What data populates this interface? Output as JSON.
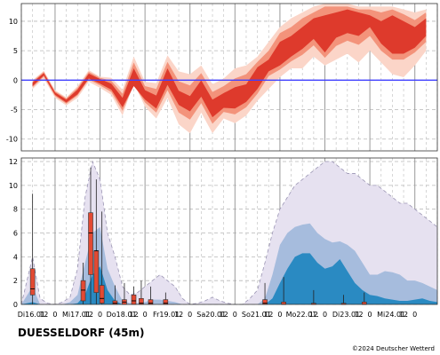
{
  "station_label": "DUESSELDORF (45m)",
  "copyright": "©2024 Deutscher Wetterd",
  "colors": {
    "temp_outer": "#fbd5c8",
    "temp_mid": "#f3937b",
    "temp_inner": "#de3a2c",
    "zero_line": "#4040ff",
    "precip_outer": "#e6e1f0",
    "precip_mid": "#a6bcdd",
    "precip_inner": "#2a8ac2",
    "box_fill": "#e34a33"
  },
  "chart_data": [
    {
      "type": "area",
      "ylim": [
        -12,
        13
      ],
      "yticks": [
        -10,
        -5,
        0,
        5,
        10
      ],
      "grid": true,
      "reference_line": 0,
      "x_unit": "hours since Di16.01. 00 UTC",
      "xlim": [
        -12,
        210
      ],
      "x": [
        -6,
        0,
        6,
        12,
        18,
        24,
        30,
        36,
        42,
        48,
        54,
        60,
        66,
        72,
        78,
        84,
        90,
        96,
        102,
        108,
        114,
        120,
        126,
        132,
        138,
        144,
        150,
        156,
        162,
        168,
        174,
        180,
        186,
        192,
        198,
        204
      ],
      "series": [
        {
          "band": "outer_low",
          "values": [
            -1.5,
            0.3,
            -3.0,
            -4.3,
            -3.0,
            -0.3,
            -1.3,
            -2.5,
            -6.0,
            -0.5,
            -4.5,
            -6.5,
            -3.0,
            -7.5,
            -9.0,
            -5.5,
            -9.0,
            -6.5,
            -7.3,
            -6.0,
            -3.5,
            -1.5,
            0.5,
            2.0,
            2.0,
            4.0,
            2.5,
            3.5,
            4.5,
            3.0,
            5.0,
            3.0,
            1.0,
            0.5,
            2.5,
            5.0
          ]
        },
        {
          "band": "mid_low",
          "values": [
            -1.2,
            0.6,
            -2.7,
            -4.0,
            -2.6,
            0.1,
            -0.9,
            -2.0,
            -5.2,
            -0.8,
            -3.8,
            -5.5,
            -1.7,
            -5.5,
            -6.7,
            -3.9,
            -7.4,
            -5.4,
            -5.8,
            -4.6,
            -2.3,
            0.7,
            1.8,
            3.2,
            4.3,
            5.9,
            3.8,
            5.8,
            6.7,
            6.0,
            7.5,
            5.0,
            3.5,
            3.5,
            4.7,
            6.5
          ]
        },
        {
          "band": "inner_low",
          "values": [
            -1.0,
            0.8,
            -2.5,
            -3.8,
            -2.4,
            0.3,
            -0.6,
            -1.6,
            -4.6,
            -1.0,
            -3.3,
            -4.8,
            -0.8,
            -4.2,
            -5.3,
            -2.8,
            -6.3,
            -4.7,
            -4.8,
            -3.7,
            -1.5,
            1.5,
            2.5,
            4.0,
            5.3,
            7.0,
            4.7,
            7.2,
            8.0,
            7.5,
            9.0,
            6.2,
            4.5,
            4.5,
            5.5,
            7.5
          ]
        },
        {
          "band": "inner_high",
          "values": [
            -0.4,
            1.2,
            -2.1,
            -3.3,
            -1.6,
            1.1,
            0.2,
            -0.6,
            -3.0,
            2.0,
            -1.7,
            -2.6,
            2.0,
            -1.8,
            -2.7,
            0.0,
            -3.3,
            -2.2,
            -1.2,
            -0.7,
            2.2,
            3.5,
            6.5,
            7.5,
            9.0,
            10.5,
            11.0,
            11.5,
            12.0,
            11.5,
            11.0,
            10.0,
            11.0,
            10.0,
            9.0,
            10.5
          ]
        },
        {
          "band": "mid_high",
          "values": [
            -0.2,
            1.4,
            -1.9,
            -3.1,
            -1.3,
            1.4,
            0.4,
            -0.1,
            -2.3,
            3.0,
            -1.0,
            -1.5,
            3.1,
            -0.2,
            -0.9,
            1.2,
            -2.0,
            -1.0,
            0.3,
            1.0,
            3.1,
            5.0,
            8.0,
            9.0,
            10.5,
            11.5,
            12.5,
            12.5,
            12.5,
            12.0,
            12.0,
            11.5,
            12.0,
            11.2,
            10.2,
            11.5
          ]
        },
        {
          "band": "outer_high",
          "values": [
            0.0,
            1.6,
            -1.7,
            -2.9,
            -1.0,
            1.7,
            0.6,
            0.4,
            -1.6,
            4.0,
            -0.3,
            -0.5,
            4.2,
            1.5,
            1.0,
            2.5,
            -0.7,
            0.3,
            2.0,
            2.5,
            4.0,
            6.5,
            9.0,
            10.5,
            11.5,
            12.5,
            13.0,
            13.0,
            13.0,
            12.5,
            12.5,
            12.5,
            12.5,
            12.0,
            11.5,
            12.0
          ]
        }
      ]
    },
    {
      "type": "area",
      "ylim": [
        0,
        12.3
      ],
      "yticks": [
        0,
        2,
        4,
        6,
        8,
        10,
        12
      ],
      "grid": true,
      "x_unit": "hours since Di16.01. 00 UTC",
      "xlim": [
        -12,
        210
      ],
      "xtick_labels": [
        {
          "x": -6,
          "label": "Di16.01."
        },
        {
          "x": 0,
          "label": "12"
        },
        {
          "x": 6,
          "label": "0"
        },
        {
          "x": 18,
          "label": "Mi17.01."
        },
        {
          "x": 24,
          "label": "12"
        },
        {
          "x": 30,
          "label": "0"
        },
        {
          "x": 42,
          "label": "Do18.01."
        },
        {
          "x": 48,
          "label": "12"
        },
        {
          "x": 54,
          "label": "0"
        },
        {
          "x": 66,
          "label": "Fr19.01."
        },
        {
          "x": 72,
          "label": "12"
        },
        {
          "x": 78,
          "label": "0"
        },
        {
          "x": 90,
          "label": "Sa20.01."
        },
        {
          "x": 96,
          "label": "12"
        },
        {
          "x": 102,
          "label": "0"
        },
        {
          "x": 114,
          "label": "So21.01."
        },
        {
          "x": 120,
          "label": "12"
        },
        {
          "x": 126,
          "label": "0"
        },
        {
          "x": 138,
          "label": "Mo22.01."
        },
        {
          "x": 144,
          "label": "12"
        },
        {
          "x": 150,
          "label": "0"
        },
        {
          "x": 162,
          "label": "Di23.01."
        },
        {
          "x": 168,
          "label": "12"
        },
        {
          "x": 174,
          "label": "0"
        },
        {
          "x": 186,
          "label": "Mi24.01."
        },
        {
          "x": 192,
          "label": "12"
        },
        {
          "x": 198,
          "label": "0"
        }
      ],
      "x": [
        -12,
        -6,
        -2,
        2,
        6,
        10,
        14,
        18,
        22,
        26,
        30,
        34,
        38,
        42,
        46,
        50,
        54,
        58,
        62,
        66,
        70,
        74,
        78,
        82,
        86,
        90,
        94,
        98,
        102,
        106,
        110,
        114,
        118,
        122,
        126,
        130,
        134,
        138,
        142,
        146,
        150,
        154,
        158,
        162,
        166,
        170,
        174,
        178,
        182,
        186,
        190,
        194,
        198,
        202,
        206,
        210
      ],
      "series": [
        {
          "band": "outer",
          "values": [
            0,
            4.0,
            0.5,
            0.1,
            0,
            0.2,
            0.6,
            3.0,
            9.0,
            12.0,
            10.5,
            6.0,
            4.0,
            1.5,
            0.8,
            1.0,
            1.5,
            2.0,
            2.5,
            2.0,
            1.5,
            0.5,
            0,
            0.1,
            0.3,
            0.6,
            0.3,
            0.1,
            0,
            0,
            0.5,
            1.2,
            3.5,
            6.0,
            8.0,
            9.0,
            10.0,
            10.5,
            11.0,
            11.5,
            12.0,
            12.0,
            11.5,
            11.0,
            11.0,
            10.5,
            10.0,
            10.0,
            9.5,
            9.0,
            8.5,
            8.5,
            8.0,
            7.5,
            7.0,
            6.5
          ]
        },
        {
          "band": "mid",
          "values": [
            0,
            1.5,
            0,
            0,
            0,
            0,
            0.2,
            0.8,
            3.5,
            6.0,
            6.5,
            3.0,
            1.5,
            0.3,
            0.1,
            0.1,
            0.2,
            0.4,
            0.4,
            0.3,
            0.2,
            0,
            0,
            0,
            0,
            0,
            0,
            0,
            0,
            0,
            0,
            0,
            0.5,
            2.5,
            5.0,
            6.0,
            6.5,
            6.7,
            6.8,
            6.0,
            5.5,
            5.2,
            5.3,
            5.0,
            4.5,
            3.5,
            2.5,
            2.5,
            2.8,
            2.7,
            2.5,
            2.0,
            2.0,
            1.8,
            1.5,
            1.2
          ]
        },
        {
          "band": "inner",
          "values": [
            0,
            0.2,
            0,
            0,
            0,
            0,
            0,
            0.1,
            0.8,
            2.5,
            3.2,
            1.2,
            0.3,
            0,
            0,
            0,
            0,
            0,
            0,
            0,
            0,
            0,
            0,
            0,
            0,
            0,
            0,
            0,
            0,
            0,
            0,
            0,
            0,
            0.5,
            1.8,
            3.0,
            4.0,
            4.3,
            4.3,
            3.5,
            3.0,
            3.2,
            3.8,
            2.8,
            1.8,
            1.2,
            0.8,
            0.7,
            0.5,
            0.4,
            0.3,
            0.3,
            0.4,
            0.5,
            0.3,
            0.2
          ]
        }
      ],
      "boxplots": [
        {
          "x": -6,
          "min": 0,
          "q1": 0.8,
          "median": 1.3,
          "q3": 3.0,
          "max": 9.3
        },
        {
          "x": 21,
          "min": 0,
          "q1": 0.3,
          "median": 1.2,
          "q3": 2.0,
          "max": 3.5
        },
        {
          "x": 25,
          "min": 0,
          "q1": 2.5,
          "median": 6.0,
          "q3": 7.7,
          "max": 11.5
        },
        {
          "x": 28,
          "min": 0,
          "q1": 1.0,
          "median": 4.5,
          "q3": 4.5,
          "max": 10.5
        },
        {
          "x": 31,
          "min": 0,
          "q1": 0.1,
          "median": 0.5,
          "q3": 1.6,
          "max": 7.8
        },
        {
          "x": 38,
          "min": 0,
          "q1": 0,
          "median": 0.1,
          "q3": 0.3,
          "max": 1.6
        },
        {
          "x": 43,
          "min": 0,
          "q1": 0,
          "median": 0.2,
          "q3": 0.4,
          "max": 1.8
        },
        {
          "x": 48,
          "min": 0,
          "q1": 0,
          "median": 0.3,
          "q3": 0.8,
          "max": 1.5
        },
        {
          "x": 52,
          "min": 0,
          "q1": 0,
          "median": 0.1,
          "q3": 0.5,
          "max": 2.0
        },
        {
          "x": 57,
          "min": 0,
          "q1": 0,
          "median": 0.1,
          "q3": 0.4,
          "max": 1.5
        },
        {
          "x": 65,
          "min": 0,
          "q1": 0,
          "median": 0.1,
          "q3": 0.4,
          "max": 1.0
        },
        {
          "x": 118,
          "min": 0,
          "q1": 0,
          "median": 0.1,
          "q3": 0.4,
          "max": 1.8
        },
        {
          "x": 128,
          "min": 0,
          "q1": 0,
          "median": 0,
          "q3": 0.2,
          "max": 2.3
        },
        {
          "x": 144,
          "min": 0,
          "q1": 0,
          "median": 0,
          "q3": 0.1,
          "max": 1.2
        },
        {
          "x": 160,
          "min": 0,
          "q1": 0,
          "median": 0,
          "q3": 0.1,
          "max": 0.8
        },
        {
          "x": 171,
          "min": 0,
          "q1": 0,
          "median": 0,
          "q3": 0.2,
          "max": 1.0
        }
      ]
    }
  ]
}
